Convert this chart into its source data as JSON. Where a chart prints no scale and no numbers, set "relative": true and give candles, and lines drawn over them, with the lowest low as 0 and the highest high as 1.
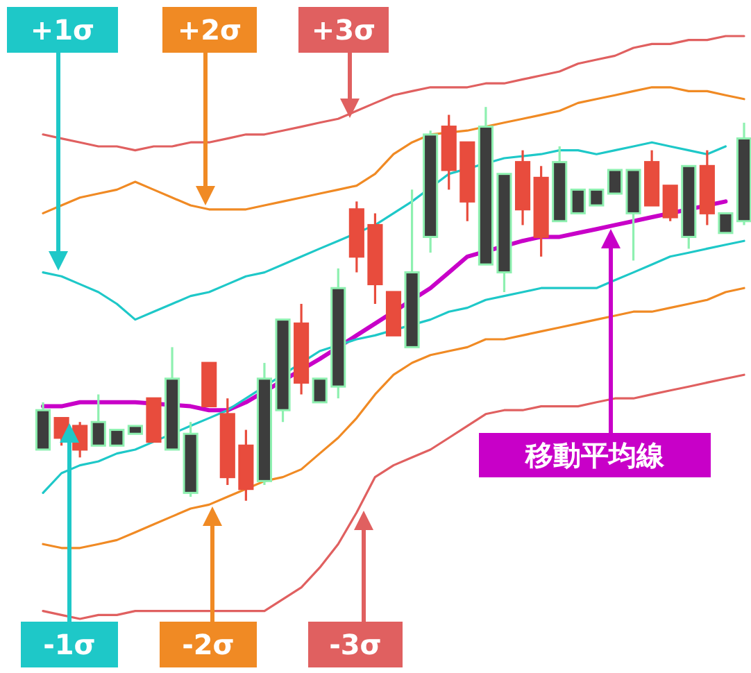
{
  "chart_data": {
    "type": "candlestick",
    "relative": true,
    "categories": [
      null,
      null,
      null,
      null,
      null,
      null,
      null,
      null,
      null,
      null,
      null,
      null,
      null,
      null,
      null,
      null,
      null,
      null,
      null,
      null,
      null,
      null,
      null,
      null,
      null,
      null,
      null,
      null,
      null,
      null,
      null,
      null,
      null,
      null,
      null,
      null,
      null,
      null,
      null
    ],
    "ohlc": [
      [
        0.13,
        0.25,
        0.13,
        0.23
      ],
      [
        0.21,
        0.21,
        0.14,
        0.16
      ],
      [
        0.19,
        0.2,
        0.11,
        0.13
      ],
      [
        0.14,
        0.27,
        0.14,
        0.2
      ],
      [
        0.14,
        0.18,
        0.14,
        0.18
      ],
      [
        0.17,
        0.19,
        0.17,
        0.19
      ],
      [
        0.26,
        0.26,
        0.15,
        0.15
      ],
      [
        0.13,
        0.39,
        0.13,
        0.31
      ],
      [
        0.02,
        0.2,
        0.01,
        0.17
      ],
      [
        0.35,
        0.35,
        0.24,
        0.24
      ],
      [
        0.22,
        0.26,
        0.04,
        0.06
      ],
      [
        0.14,
        0.18,
        0.0,
        0.03
      ],
      [
        0.05,
        0.35,
        0.04,
        0.31
      ],
      [
        0.23,
        0.46,
        0.2,
        0.46
      ],
      [
        0.45,
        0.5,
        0.27,
        0.3
      ],
      [
        0.25,
        0.31,
        0.25,
        0.31
      ],
      [
        0.29,
        0.59,
        0.26,
        0.54
      ],
      [
        0.74,
        0.76,
        0.58,
        0.62
      ],
      [
        0.7,
        0.73,
        0.5,
        0.55
      ],
      [
        0.53,
        0.53,
        0.42,
        0.42
      ],
      [
        0.39,
        0.79,
        0.39,
        0.58
      ],
      [
        0.67,
        0.94,
        0.63,
        0.93
      ],
      [
        0.95,
        0.98,
        0.79,
        0.84
      ],
      [
        0.91,
        0.91,
        0.71,
        0.76
      ],
      [
        0.6,
        1.0,
        0.6,
        0.95
      ],
      [
        0.58,
        0.83,
        0.53,
        0.83
      ],
      [
        0.86,
        0.89,
        0.7,
        0.74
      ],
      [
        0.82,
        0.85,
        0.62,
        0.67
      ],
      [
        0.71,
        0.9,
        0.71,
        0.86
      ],
      [
        0.73,
        0.79,
        0.73,
        0.79
      ],
      [
        0.75,
        0.79,
        0.75,
        0.79
      ],
      [
        0.78,
        0.84,
        0.78,
        0.84
      ],
      [
        0.73,
        0.84,
        0.61,
        0.84
      ],
      [
        0.86,
        0.89,
        0.75,
        0.75
      ],
      [
        0.8,
        0.8,
        0.71,
        0.72
      ],
      [
        0.67,
        0.85,
        0.64,
        0.85
      ],
      [
        0.85,
        0.89,
        0.7,
        0.73
      ],
      [
        0.68,
        0.73,
        0.68,
        0.73
      ],
      [
        0.71,
        0.96,
        0.7,
        0.92
      ]
    ],
    "colors": [
      "#3d3d3d",
      "#e84c3d",
      "#e84c3d",
      "#3d3d3d",
      "#3d3d3d",
      "#3d3d3d",
      "#e84c3d",
      "#3d3d3d",
      "#3d3d3d",
      "#e84c3d",
      "#e84c3d",
      "#e84c3d",
      "#3d3d3d",
      "#3d3d3d",
      "#e84c3d",
      "#3d3d3d",
      "#3d3d3d",
      "#e84c3d",
      "#e84c3d",
      "#e84c3d",
      "#3d3d3d",
      "#3d3d3d",
      "#e84c3d",
      "#e84c3d",
      "#3d3d3d",
      "#3d3d3d",
      "#e84c3d",
      "#e84c3d",
      "#3d3d3d",
      "#3d3d3d",
      "#3d3d3d",
      "#3d3d3d",
      "#3d3d3d",
      "#e84c3d",
      "#e84c3d",
      "#3d3d3d",
      "#e84c3d",
      "#3d3d3d",
      "#3d3d3d"
    ],
    "series": [
      {
        "type": "line",
        "color": "#c800c8",
        "values": [
          0.24,
          0.24,
          0.25,
          0.25,
          0.25,
          0.25,
          null,
          null,
          0.24,
          0.23,
          0.23,
          0.25,
          null,
          null,
          null,
          0.36,
          null,
          0.42,
          0.45,
          null,
          null,
          0.54,
          0.58,
          0.62,
          null,
          null,
          0.66,
          0.67,
          0.67,
          0.68,
          0.69,
          0.7,
          0.71,
          0.72,
          null,
          null,
          null,
          0.76,
          null
        ]
      },
      {
        "type": "line",
        "color": "#1ec8c8",
        "values": [
          0.58,
          0.57,
          0.55,
          0.53,
          0.5,
          0.46,
          0.48,
          0.5,
          0.52,
          0.53,
          0.55,
          0.57,
          0.58,
          0.6,
          0.62,
          0.64,
          0.66,
          null,
          0.7,
          0.73,
          0.76,
          null,
          0.83,
          null,
          null,
          0.87,
          null,
          0.88,
          0.89,
          0.89,
          0.88,
          0.89,
          0.9,
          0.91,
          0.9,
          0.89,
          0.88,
          0.9,
          null
        ]
      },
      {
        "type": "line",
        "color": "#f08a24",
        "values": [
          0.73,
          0.75,
          0.77,
          0.78,
          0.79,
          0.81,
          0.79,
          0.77,
          0.75,
          0.74,
          0.74,
          0.74,
          0.75,
          0.76,
          0.77,
          0.78,
          0.79,
          0.8,
          0.83,
          0.88,
          0.91,
          0.93,
          null,
          0.94,
          null,
          0.96,
          0.97,
          0.98,
          0.99,
          1.01,
          1.02,
          1.03,
          1.04,
          1.05,
          1.05,
          1.04,
          1.04,
          1.03,
          1.02
        ]
      },
      {
        "type": "line",
        "color": "#e06060",
        "values": [
          0.93,
          0.92,
          0.91,
          0.9,
          0.9,
          0.89,
          0.9,
          0.9,
          0.91,
          0.91,
          0.92,
          0.93,
          0.93,
          0.94,
          0.95,
          0.96,
          0.97,
          0.99,
          1.01,
          1.03,
          1.04,
          1.05,
          1.05,
          1.05,
          1.06,
          1.06,
          1.07,
          1.08,
          1.09,
          1.11,
          1.12,
          1.13,
          1.15,
          1.16,
          1.16,
          1.17,
          1.17,
          1.18,
          1.18
        ]
      },
      {
        "type": "line",
        "color": "#1ec8c8",
        "values": [
          0.02,
          0.07,
          0.09,
          0.1,
          0.12,
          0.13,
          0.15,
          null,
          0.19,
          0.21,
          0.23,
          0.26,
          null,
          null,
          null,
          0.38,
          null,
          0.41,
          0.42,
          null,
          null,
          0.46,
          0.48,
          0.49,
          0.51,
          0.52,
          0.53,
          0.54,
          0.54,
          0.54,
          0.54,
          0.56,
          0.58,
          0.6,
          0.62,
          0.63,
          0.64,
          0.65,
          0.66
        ]
      },
      {
        "type": "line",
        "color": "#f08a24",
        "values": [
          -0.11,
          -0.12,
          -0.12,
          -0.11,
          -0.1,
          -0.08,
          -0.06,
          -0.04,
          -0.02,
          -0.01,
          0.01,
          0.03,
          0.05,
          0.06,
          0.08,
          0.12,
          0.16,
          0.21,
          0.27,
          0.32,
          0.35,
          0.37,
          0.38,
          0.39,
          0.41,
          0.41,
          0.42,
          0.43,
          0.44,
          0.45,
          0.46,
          0.47,
          0.48,
          0.48,
          0.49,
          0.5,
          0.51,
          0.53,
          0.54
        ]
      },
      {
        "type": "line",
        "color": "#e06060",
        "values": [
          -0.28,
          -0.29,
          -0.3,
          -0.29,
          -0.29,
          -0.28,
          -0.28,
          -0.28,
          -0.28,
          -0.28,
          -0.28,
          -0.28,
          -0.28,
          -0.25,
          -0.22,
          -0.17,
          -0.11,
          -0.03,
          0.06,
          0.09,
          0.11,
          0.13,
          0.16,
          0.19,
          0.22,
          0.23,
          0.23,
          0.24,
          0.24,
          0.24,
          0.25,
          0.26,
          0.26,
          0.27,
          0.28,
          0.29,
          0.3,
          0.31,
          0.32
        ]
      }
    ],
    "annotations": [
      "+1σ",
      "+2σ",
      "+3σ",
      "-1σ",
      "-2σ",
      "-3σ",
      "移動平均線"
    ]
  }
}
